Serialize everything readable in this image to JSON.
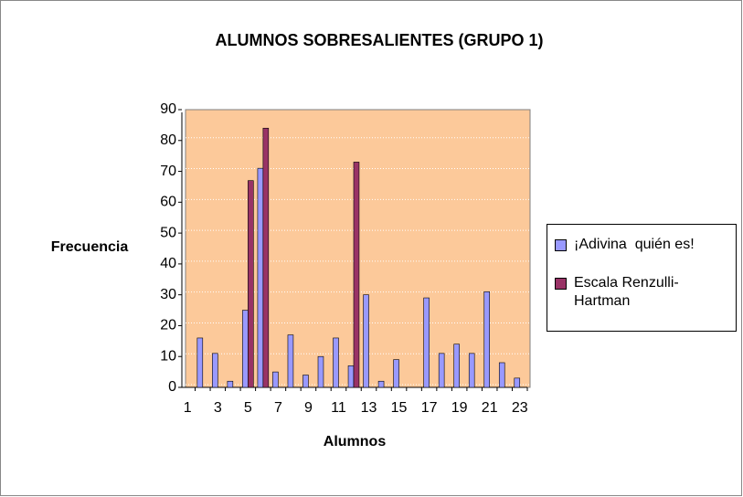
{
  "chart_data": {
    "type": "bar",
    "title": "ALUMNOS SOBRESALIENTES (GRUPO 1)",
    "x_label": "Alumnos",
    "y_label": "Frecuencia",
    "categories": [
      "1",
      null,
      "3",
      null,
      "5",
      null,
      "7",
      null,
      "9",
      null,
      "11",
      null,
      "13",
      null,
      "15",
      null,
      "17",
      null,
      "19",
      null,
      "21",
      null,
      "23"
    ],
    "series": [
      {
        "name": "¡Adivina  quién es!",
        "color": "#9999ff",
        "values": [
          0,
          16,
          11,
          2,
          25,
          71,
          5,
          17,
          4,
          10,
          16,
          7,
          30,
          2,
          9,
          0,
          29,
          11,
          14,
          11,
          31,
          8,
          3
        ]
      },
      {
        "name": "Escala Renzulli-Hartman",
        "color": "#993366",
        "values": [
          0,
          0,
          0,
          0,
          67,
          84,
          0,
          0,
          0,
          0,
          0,
          73,
          0,
          0,
          0,
          0,
          0,
          0,
          0,
          0,
          0,
          0,
          0
        ]
      }
    ],
    "ylim": [
      0,
      90
    ],
    "yticks": [
      0,
      10,
      20,
      30,
      40,
      50,
      60,
      70,
      80,
      90
    ],
    "grid": true,
    "plot_background": "#fcc99a",
    "legend": "right"
  }
}
